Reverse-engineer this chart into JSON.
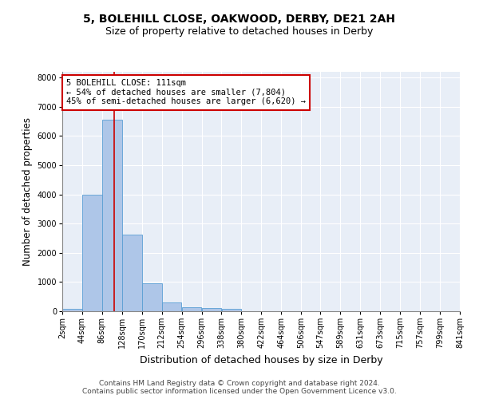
{
  "title1": "5, BOLEHILL CLOSE, OAKWOOD, DERBY, DE21 2AH",
  "title2": "Size of property relative to detached houses in Derby",
  "xlabel": "Distribution of detached houses by size in Derby",
  "ylabel": "Number of detached properties",
  "bin_edges": [
    2,
    44,
    86,
    128,
    170,
    212,
    254,
    296,
    338,
    380,
    422,
    464,
    506,
    547,
    589,
    631,
    673,
    715,
    757,
    799,
    841
  ],
  "bar_values": [
    75,
    3980,
    6550,
    2620,
    950,
    310,
    130,
    110,
    80,
    0,
    0,
    0,
    0,
    0,
    0,
    0,
    0,
    0,
    0,
    0
  ],
  "bar_color": "#aec6e8",
  "bar_edge_color": "#5a9fd4",
  "property_size": 111,
  "vline_color": "#cc0000",
  "annotation_line1": "5 BOLEHILL CLOSE: 111sqm",
  "annotation_line2": "← 54% of detached houses are smaller (7,804)",
  "annotation_line3": "45% of semi-detached houses are larger (6,620) →",
  "annotation_box_color": "#ffffff",
  "annotation_box_edge": "#cc0000",
  "ylim": [
    0,
    8200
  ],
  "yticks": [
    0,
    1000,
    2000,
    3000,
    4000,
    5000,
    6000,
    7000,
    8000
  ],
  "background_color": "#e8eef7",
  "footer_line1": "Contains HM Land Registry data © Crown copyright and database right 2024.",
  "footer_line2": "Contains public sector information licensed under the Open Government Licence v3.0.",
  "title1_fontsize": 10,
  "title2_fontsize": 9,
  "xlabel_fontsize": 9,
  "ylabel_fontsize": 8.5,
  "tick_label_fontsize": 7,
  "annotation_fontsize": 7.5,
  "footer_fontsize": 6.5
}
